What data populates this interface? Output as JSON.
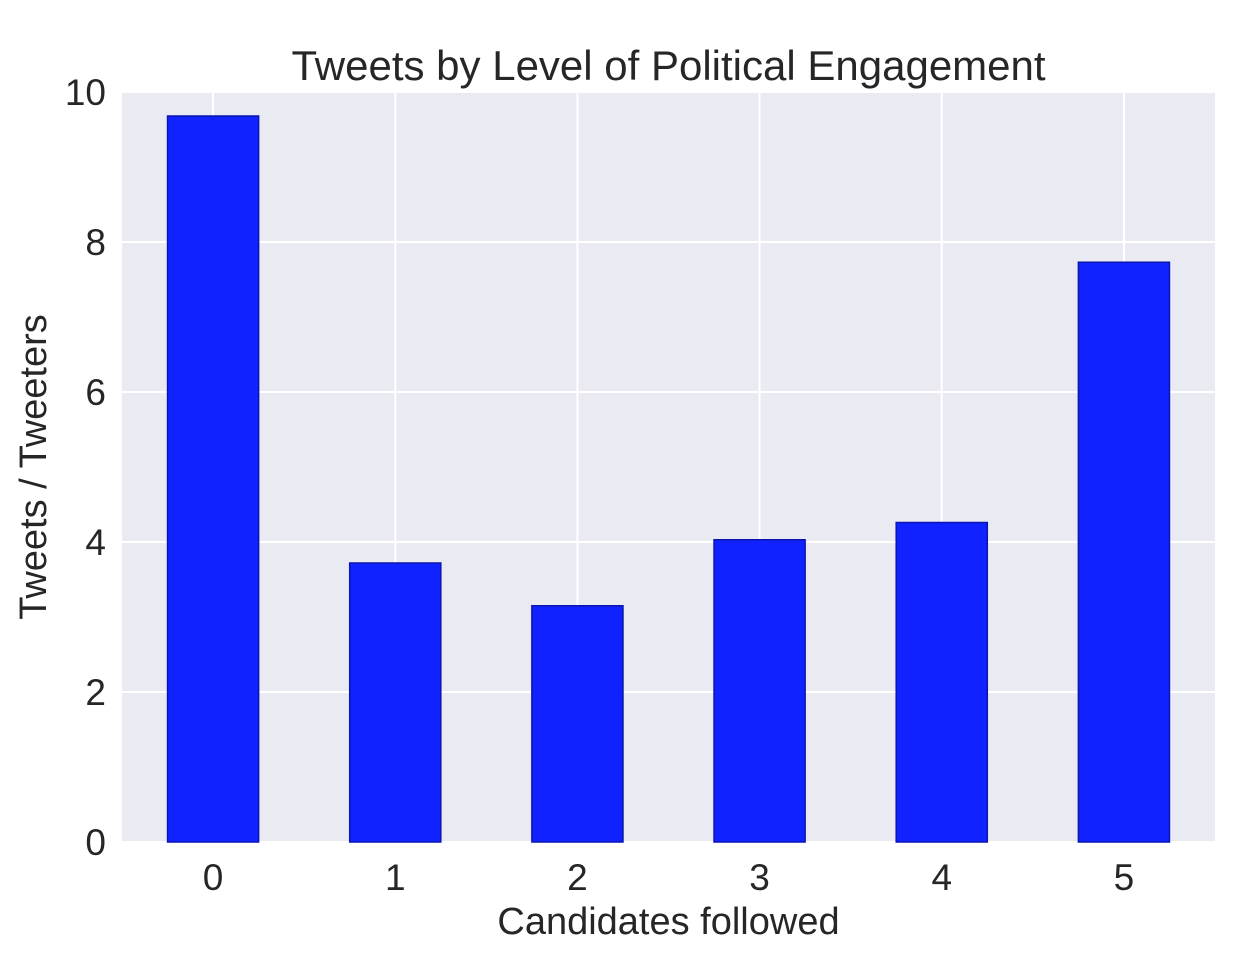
{
  "chart_data": {
    "type": "bar",
    "title": "Tweets by Level of Political Engagement",
    "xlabel": "Candidates followed",
    "ylabel": "Tweets / Tweeters",
    "categories": [
      "0",
      "1",
      "2",
      "3",
      "4",
      "5"
    ],
    "values": [
      9.68,
      3.72,
      3.15,
      4.03,
      4.26,
      7.73
    ],
    "ylim": [
      0,
      10
    ],
    "yticks": [
      "0",
      "2",
      "4",
      "6",
      "8",
      "10"
    ],
    "grid": true,
    "colors": {
      "bar": "#1022ff",
      "bar_edge": "#0a15b0",
      "plot_background": "#eaeaf2",
      "grid": "#ffffff"
    }
  }
}
